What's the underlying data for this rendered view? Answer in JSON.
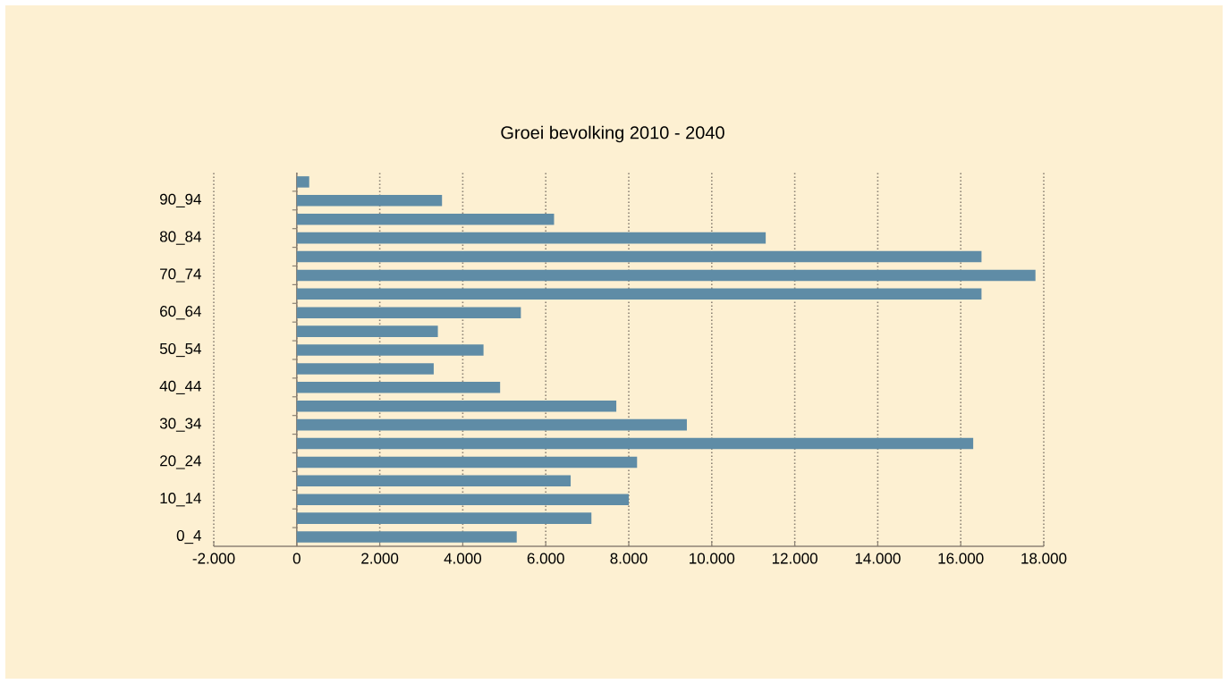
{
  "chart_data": {
    "type": "bar",
    "orientation": "horizontal",
    "title": "Groei bevolking 2010 - 2040",
    "categories": [
      null,
      "90_94",
      null,
      "80_84",
      null,
      "70_74",
      null,
      "60_64",
      null,
      "50_54",
      null,
      "40_44",
      null,
      "30_34",
      null,
      "20_24",
      null,
      "10_14",
      null,
      "0_4"
    ],
    "values": [
      300,
      3500,
      6200,
      11300,
      16500,
      17800,
      16500,
      5400,
      3400,
      4500,
      3300,
      4900,
      7700,
      9400,
      16300,
      8200,
      6600,
      8000,
      7100,
      5300
    ],
    "color": "#5f8ca6",
    "xlim": [
      -2000,
      18000
    ],
    "xticks": [
      {
        "value": -2000,
        "label": "-2.000"
      },
      0,
      {
        "value": 2000,
        "label": "2.000"
      },
      {
        "value": 4000,
        "label": "4.000"
      },
      {
        "value": 6000,
        "label": "6.000"
      },
      {
        "value": 8000,
        "label": "8.000"
      },
      {
        "value": 10000,
        "label": "10.000"
      },
      {
        "value": 12000,
        "label": "12.000"
      },
      {
        "value": 14000,
        "label": "14.000"
      },
      {
        "value": 16000,
        "label": "16.000"
      },
      {
        "value": 18000,
        "label": "18.000"
      }
    ],
    "grid": "x"
  }
}
